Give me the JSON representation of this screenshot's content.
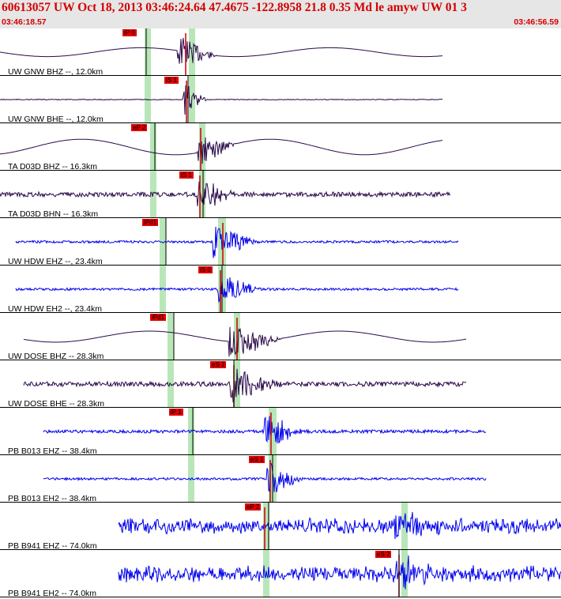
{
  "header": {
    "title": "60613057 UW Oct 18, 2013 03:46:24.64   47.4675 -122.8958 21.8 0.35 Md le amyw UW 01   3",
    "time_start": "03:46:18.57",
    "time_end": "03:46:56.59"
  },
  "colors": {
    "header_bg": "#e6e6e6",
    "header_text": "#d40000",
    "trace_dark": "#2a0a4a",
    "trace_blue": "#0000ee",
    "pick_box": "#e00000",
    "pick_window": "#b8e6b8"
  },
  "panels": [
    {
      "label": "UW GNW BHZ --, 12.0km",
      "pick": "iP 0",
      "color": "dark"
    },
    {
      "label": "UW GNW BHE --, 12.0km",
      "pick": "iS 1",
      "color": "dark"
    },
    {
      "label": "TA D03D BHZ -- 16.3km",
      "pick": "eP 2",
      "color": "dark"
    },
    {
      "label": "TA D03D BHN -- 16.3km",
      "pick": "iS 1",
      "color": "dark"
    },
    {
      "label": "UW HDW EHZ --, 23.4km",
      "pick": "iPd1",
      "color": "blue"
    },
    {
      "label": "UW HDW EH2 --, 23.4km",
      "pick": "iS 0",
      "color": "blue"
    },
    {
      "label": "UW DOSE BHZ -- 28.3km",
      "pick": "iPd1",
      "color": "dark"
    },
    {
      "label": "UW DOSE BHE -- 28.3km",
      "pick": "eS 2",
      "color": "dark"
    },
    {
      "label": "PB B013 EHZ -- 38.4km",
      "pick": "iP 1",
      "color": "blue"
    },
    {
      "label": "PB B013 EH2 -- 38.4km",
      "pick": "eS 1",
      "color": "blue"
    },
    {
      "label": "PB B941 EHZ -- 74.0km",
      "pick": "eP 2",
      "color": "blue"
    },
    {
      "label": "PB B941 EH2 -- 74.0km",
      "pick": "eS 2",
      "color": "blue"
    }
  ]
}
